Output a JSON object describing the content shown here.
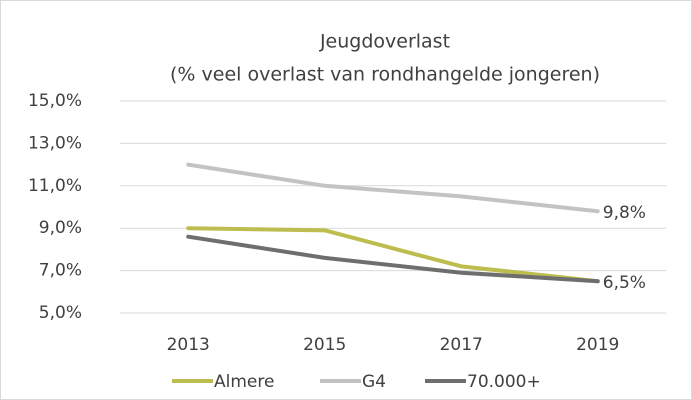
{
  "chart_data": {
    "type": "line",
    "title": "Jeugdoverlast",
    "subtitle": "(% veel overlast van rondhangelde jongeren)",
    "categories": [
      "2013",
      "2015",
      "2017",
      "2019"
    ],
    "series": [
      {
        "name": "Almere",
        "color": "#bcbc4f",
        "values": [
          9.0,
          8.9,
          7.2,
          6.5
        ]
      },
      {
        "name": "G4",
        "color": "#c3c3c3",
        "values": [
          12.0,
          11.0,
          10.5,
          9.8
        ],
        "value_labels": [
          null,
          null,
          null,
          "9,8%"
        ]
      },
      {
        "name": "70.000+",
        "color": "#6e6e6e",
        "values": [
          8.6,
          7.6,
          6.9,
          6.5
        ],
        "value_labels": [
          null,
          null,
          null,
          "6,5%"
        ]
      }
    ],
    "ylim": [
      5,
      15
    ],
    "yticks": [
      {
        "value": 5,
        "label": "5,0%"
      },
      {
        "value": 7,
        "label": "7,0%"
      },
      {
        "value": 9,
        "label": "9,0%"
      },
      {
        "value": 11,
        "label": "11,0%"
      },
      {
        "value": 13,
        "label": "13,0%"
      },
      {
        "value": 15,
        "label": "15,0%"
      }
    ],
    "grid": true,
    "legend": "bottom"
  }
}
